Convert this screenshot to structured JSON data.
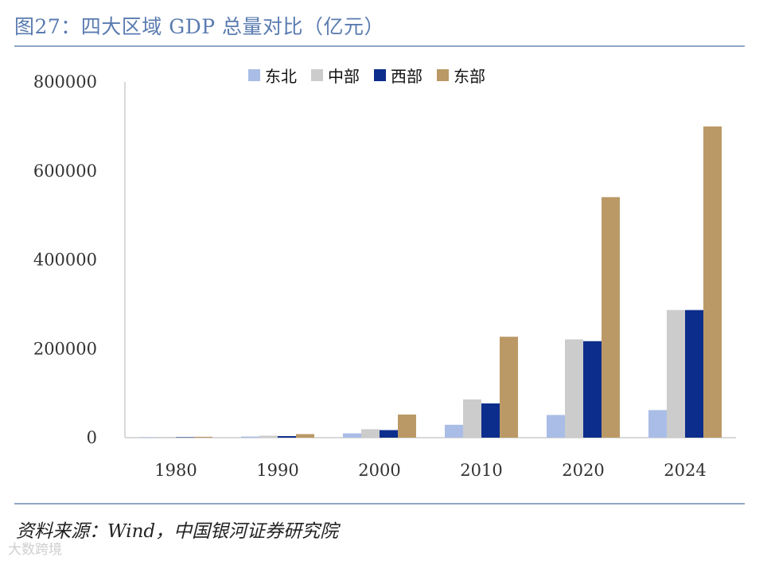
{
  "title": "图27：四大区域 GDP 总量对比（亿元）",
  "source": "资料来源：Wind，中国银河证券研究院",
  "watermark": "大数跨境",
  "chart_data": {
    "type": "bar",
    "title": "图27：四大区域 GDP 总量对比（亿元）",
    "xlabel": "",
    "ylabel": "",
    "ylim": [
      0,
      800000
    ],
    "yticks": [
      0,
      200000,
      400000,
      600000,
      800000
    ],
    "ytick_labels": [
      "0",
      "200000",
      "400000",
      "600000",
      "800000"
    ],
    "categories": [
      "1980",
      "1990",
      "2000",
      "2010",
      "2020",
      "2024"
    ],
    "legend_position": "top-center",
    "series": [
      {
        "name": "东北",
        "color": "#a9bde6",
        "values": [
          700,
          2500,
          9700,
          29000,
          51000,
          62000
        ]
      },
      {
        "name": "中部",
        "color": "#cccccc",
        "values": [
          1100,
          4500,
          19000,
          86000,
          221000,
          287000
        ]
      },
      {
        "name": "西部",
        "color": "#0d2d8c",
        "values": [
          900,
          3500,
          17000,
          77000,
          217000,
          287000
        ]
      },
      {
        "name": "东部",
        "color": "#bb9966",
        "values": [
          2000,
          8000,
          52000,
          227000,
          541000,
          700000
        ]
      }
    ]
  }
}
